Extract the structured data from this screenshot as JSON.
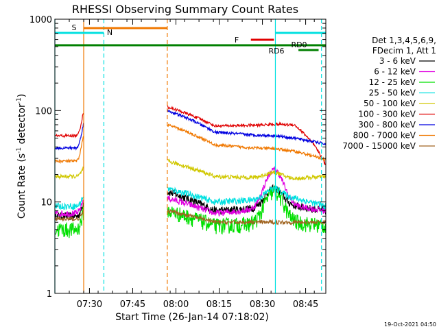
{
  "chart_data": {
    "type": "line",
    "title": "RHESSI Observing Summary Count Rates",
    "xlabel": "Start Time (26-Jan-14 07:18:02)",
    "ylabel_main": "Count Rate (s",
    "ylabel_sup1": "-1",
    "ylabel_mid": " detector",
    "ylabel_sup2": "-1",
    "ylabel_end": ")",
    "yscale": "log",
    "ylim": [
      1,
      1000
    ],
    "xlim_minutes": [
      0,
      94
    ],
    "x_ticks": [
      {
        "label": "07:30",
        "min": 12
      },
      {
        "label": "07:45",
        "min": 27
      },
      {
        "label": "08:00",
        "min": 42
      },
      {
        "label": "08:15",
        "min": 57
      },
      {
        "label": "08:30",
        "min": 72
      },
      {
        "label": "08:45",
        "min": 87
      }
    ],
    "y_ticks": [
      {
        "label": "1",
        "value": 1
      },
      {
        "label": "10",
        "value": 10
      },
      {
        "label": "100",
        "value": 100
      },
      {
        "label": "1000",
        "value": 1000
      }
    ],
    "legend_header": [
      "Det 1,3,4,5,6,9,",
      "FDecim 1, Att 1"
    ],
    "series": [
      {
        "name": "3 - 6 keV",
        "color": "#000000"
      },
      {
        "name": "6 - 12 keV",
        "color": "#e000e0"
      },
      {
        "name": "12 - 25 keV",
        "color": "#00e000"
      },
      {
        "name": "25 - 50 keV",
        "color": "#00e0e0"
      },
      {
        "name": "50 - 100 keV",
        "color": "#d0c800"
      },
      {
        "name": "100 - 300 keV",
        "color": "#e00000"
      },
      {
        "name": "300 - 800 keV",
        "color": "#0000e0"
      },
      {
        "name": "800 - 7000 keV",
        "color": "#f07800"
      },
      {
        "name": "7000 - 15000 keV",
        "color": "#a06420"
      }
    ],
    "flag_labels": {
      "s": "S",
      "n": "N",
      "f": "F",
      "rd0": "RD0",
      "rd6": "RD6"
    },
    "data_gaps_minutes": [
      [
        10,
        39
      ]
    ],
    "flare_peak_minute": 76,
    "timestamp": "19-Oct-2021 04:50"
  }
}
